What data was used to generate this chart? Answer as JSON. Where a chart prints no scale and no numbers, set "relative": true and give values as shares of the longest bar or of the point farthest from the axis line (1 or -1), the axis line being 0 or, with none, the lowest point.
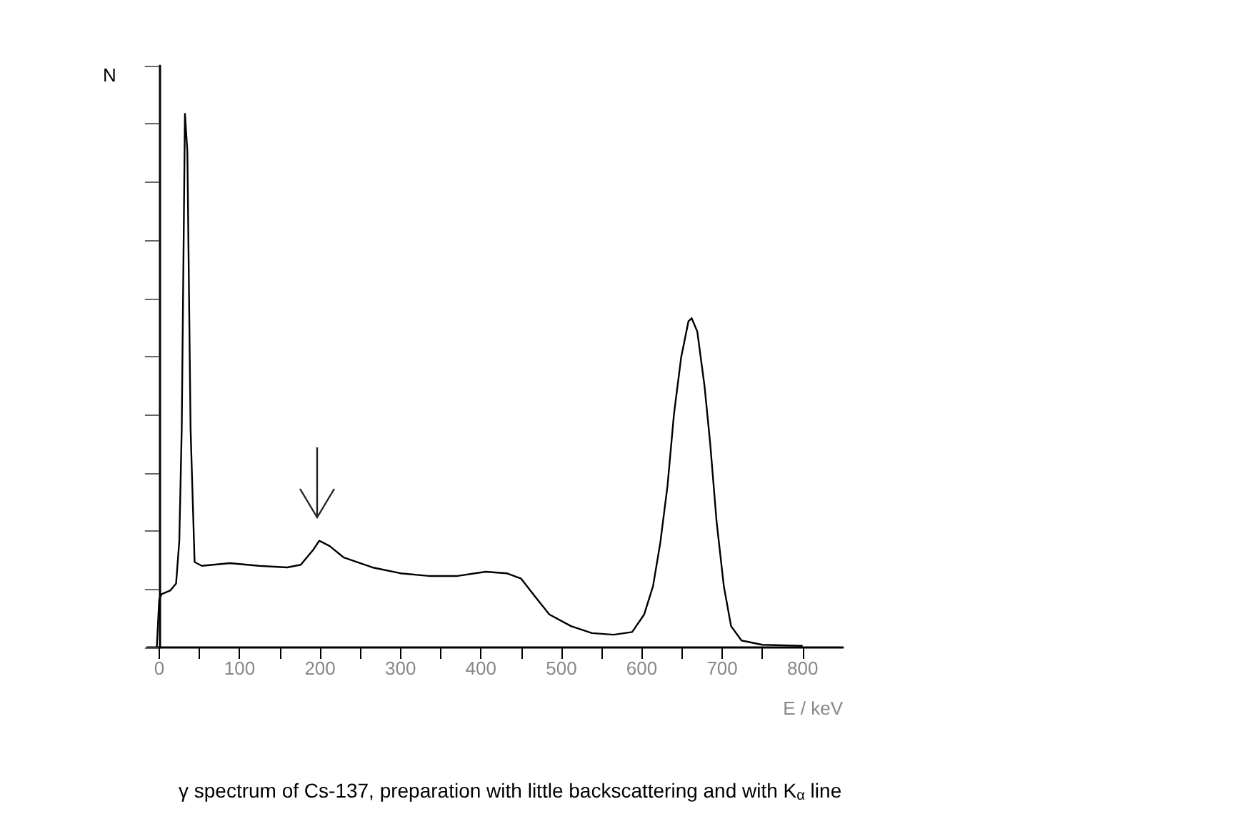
{
  "chart_data": {
    "type": "line",
    "title": "γ spectrum of Cs-137, preparation with little backscattering and with K$_{α}$ line",
    "xlabel": "E / keV",
    "ylabel": "N",
    "relative": true,
    "marker": "none",
    "line_style": "solid",
    "xlim": [
      -15,
      850
    ],
    "xticks": [
      0,
      {
        "value": 50,
        "label": null
      },
      100,
      {
        "value": 150,
        "label": null
      },
      200,
      {
        "value": 250,
        "label": null
      },
      300,
      {
        "value": 350,
        "label": null
      },
      400,
      {
        "value": 450,
        "label": null
      },
      500,
      {
        "value": 550,
        "label": null
      },
      600,
      {
        "value": 650,
        "label": null
      },
      700,
      {
        "value": 750,
        "label": null
      },
      800
    ],
    "series": [
      {
        "color": "#000000",
        "x": [
          -3,
          0,
          3,
          14,
          21,
          25,
          28,
          32,
          35,
          39,
          44,
          53,
          88,
          124,
          159,
          176,
          191,
          199,
          212,
          229,
          265,
          300,
          335,
          371,
          406,
          432,
          450,
          468,
          485,
          512,
          538,
          565,
          588,
          603,
          614,
          623,
          632,
          640,
          649,
          658,
          662,
          669,
          678,
          685,
          693,
          702,
          711,
          724,
          750,
          800
        ],
        "values": [
          0,
          0.09,
          0.1,
          0.107,
          0.12,
          0.2,
          0.41,
          1,
          0.93,
          0.41,
          0.16,
          0.153,
          0.158,
          0.153,
          0.15,
          0.155,
          0.182,
          0.2,
          0.19,
          0.169,
          0.15,
          0.139,
          0.134,
          0.134,
          0.142,
          0.139,
          0.129,
          0.094,
          0.062,
          0.04,
          0.027,
          0.024,
          0.029,
          0.062,
          0.115,
          0.196,
          0.303,
          0.437,
          0.544,
          0.611,
          0.617,
          0.592,
          0.49,
          0.383,
          0.236,
          0.115,
          0.04,
          0.013,
          0.005,
          0.003
        ]
      }
    ]
  }
}
